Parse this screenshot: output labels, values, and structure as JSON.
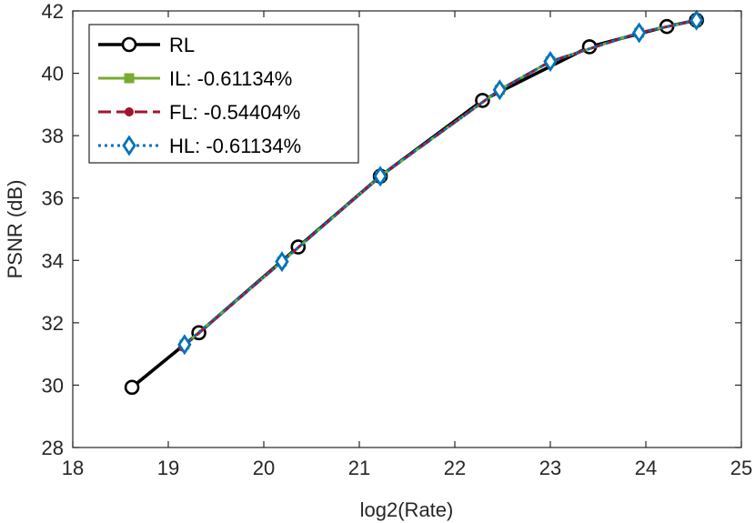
{
  "chart_data": {
    "type": "line",
    "title": "",
    "xlabel": "log2(Rate)",
    "ylabel": "PSNR (dB)",
    "xlim": [
      18,
      25
    ],
    "ylim": [
      28,
      42
    ],
    "xticks": [
      18,
      19,
      20,
      21,
      22,
      23,
      24,
      25
    ],
    "yticks": [
      28,
      30,
      32,
      34,
      36,
      38,
      40,
      42
    ],
    "grid": false,
    "legend_position": "top-left",
    "series": [
      {
        "name": "RL",
        "color": "#000000",
        "line_style": "solid",
        "marker": "circle-open",
        "x": [
          18.62,
          19.32,
          20.36,
          21.22,
          22.29,
          23.41,
          24.22,
          24.53
        ],
        "y": [
          29.93,
          31.68,
          34.43,
          36.7,
          39.13,
          40.85,
          41.5,
          41.7
        ]
      },
      {
        "name": "IL: -0.61134%",
        "color": "#77ac30",
        "line_style": "solid",
        "marker": "square-filled",
        "x": [
          19.17,
          20.19,
          21.22,
          22.47,
          23.0,
          23.93,
          24.53
        ],
        "y": [
          31.3,
          33.96,
          36.7,
          39.47,
          40.38,
          41.3,
          41.7
        ]
      },
      {
        "name": "FL: -0.54404%",
        "color": "#a2142f",
        "line_style": "dashed",
        "marker": "circle-filled",
        "x": [
          19.15,
          20.19,
          21.22,
          22.47,
          23.0,
          23.93,
          24.53
        ],
        "y": [
          31.22,
          33.96,
          36.7,
          39.47,
          40.38,
          41.3,
          41.7
        ]
      },
      {
        "name": "HL: -0.61134%",
        "color": "#0072bd",
        "line_style": "dotted",
        "marker": "diamond-open",
        "x": [
          19.17,
          20.19,
          21.22,
          22.47,
          23.0,
          23.93,
          24.53
        ],
        "y": [
          31.3,
          33.96,
          36.7,
          39.47,
          40.38,
          41.3,
          41.7
        ]
      }
    ]
  }
}
